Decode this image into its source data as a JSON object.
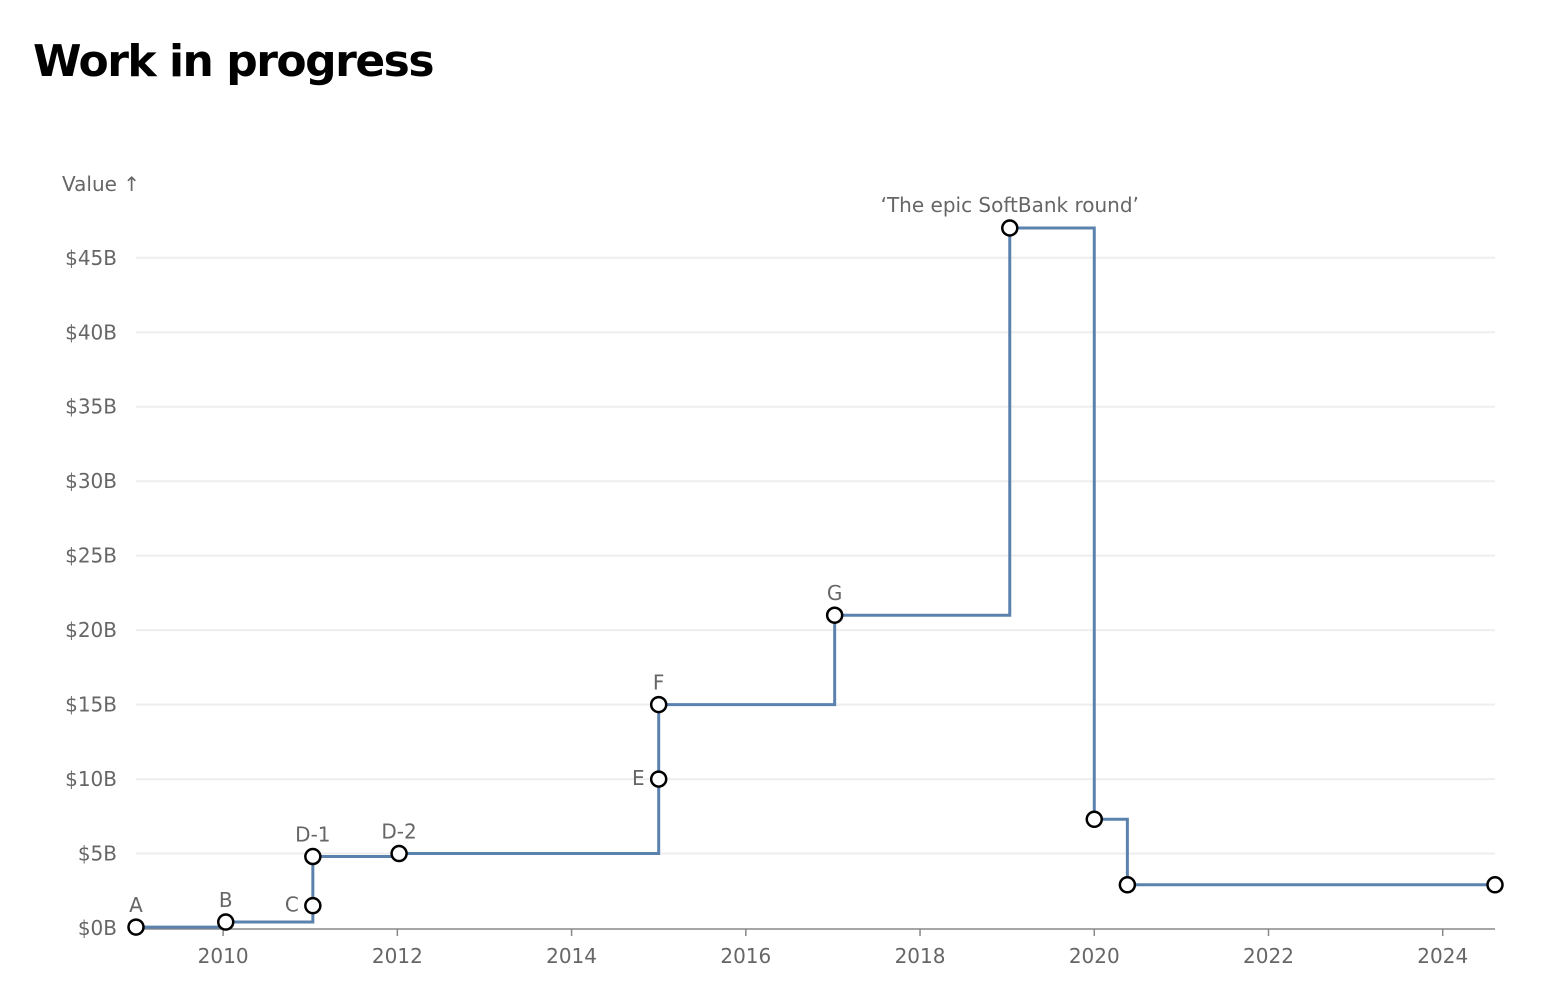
{
  "title": "Work in progress",
  "chart_data": {
    "type": "line",
    "step": "after",
    "ylabel": "Value ↑",
    "xlim": [
      2009.0,
      2024.6
    ],
    "ylim": [
      0,
      47
    ],
    "x_ticks": [
      2010,
      2012,
      2014,
      2016,
      2018,
      2020,
      2022,
      2024
    ],
    "y_ticks": [
      0,
      5,
      10,
      15,
      20,
      25,
      30,
      35,
      40,
      45
    ],
    "y_tick_labels": [
      "$0B",
      "$5B",
      "$10B",
      "$15B",
      "$20B",
      "$25B",
      "$30B",
      "$35B",
      "$40B",
      "$45B"
    ],
    "grid": true,
    "colors": {
      "line": "#5b82ae",
      "grid": "#eeeeee",
      "marker_stroke": "#000000",
      "marker_fill": "#ffffff"
    },
    "points": [
      {
        "x": 2009.0,
        "y": 0.06,
        "label": "A"
      },
      {
        "x": 2010.03,
        "y": 0.4,
        "label": "B"
      },
      {
        "x": 2011.03,
        "y": 1.5,
        "label": "C"
      },
      {
        "x": 2011.03,
        "y": 4.8,
        "label": "D-1"
      },
      {
        "x": 2012.02,
        "y": 5.0,
        "label": "D-2"
      },
      {
        "x": 2015.0,
        "y": 10.0,
        "label": "E"
      },
      {
        "x": 2015.0,
        "y": 15.0,
        "label": "F"
      },
      {
        "x": 2017.02,
        "y": 21.0,
        "label": "G"
      },
      {
        "x": 2019.03,
        "y": 47.0,
        "label": "‘The epic SoftBank round’"
      },
      {
        "x": 2020.0,
        "y": 7.3,
        "label": ""
      },
      {
        "x": 2020.38,
        "y": 2.9,
        "label": ""
      },
      {
        "x": 2024.6,
        "y": 2.9,
        "label": ""
      }
    ]
  }
}
